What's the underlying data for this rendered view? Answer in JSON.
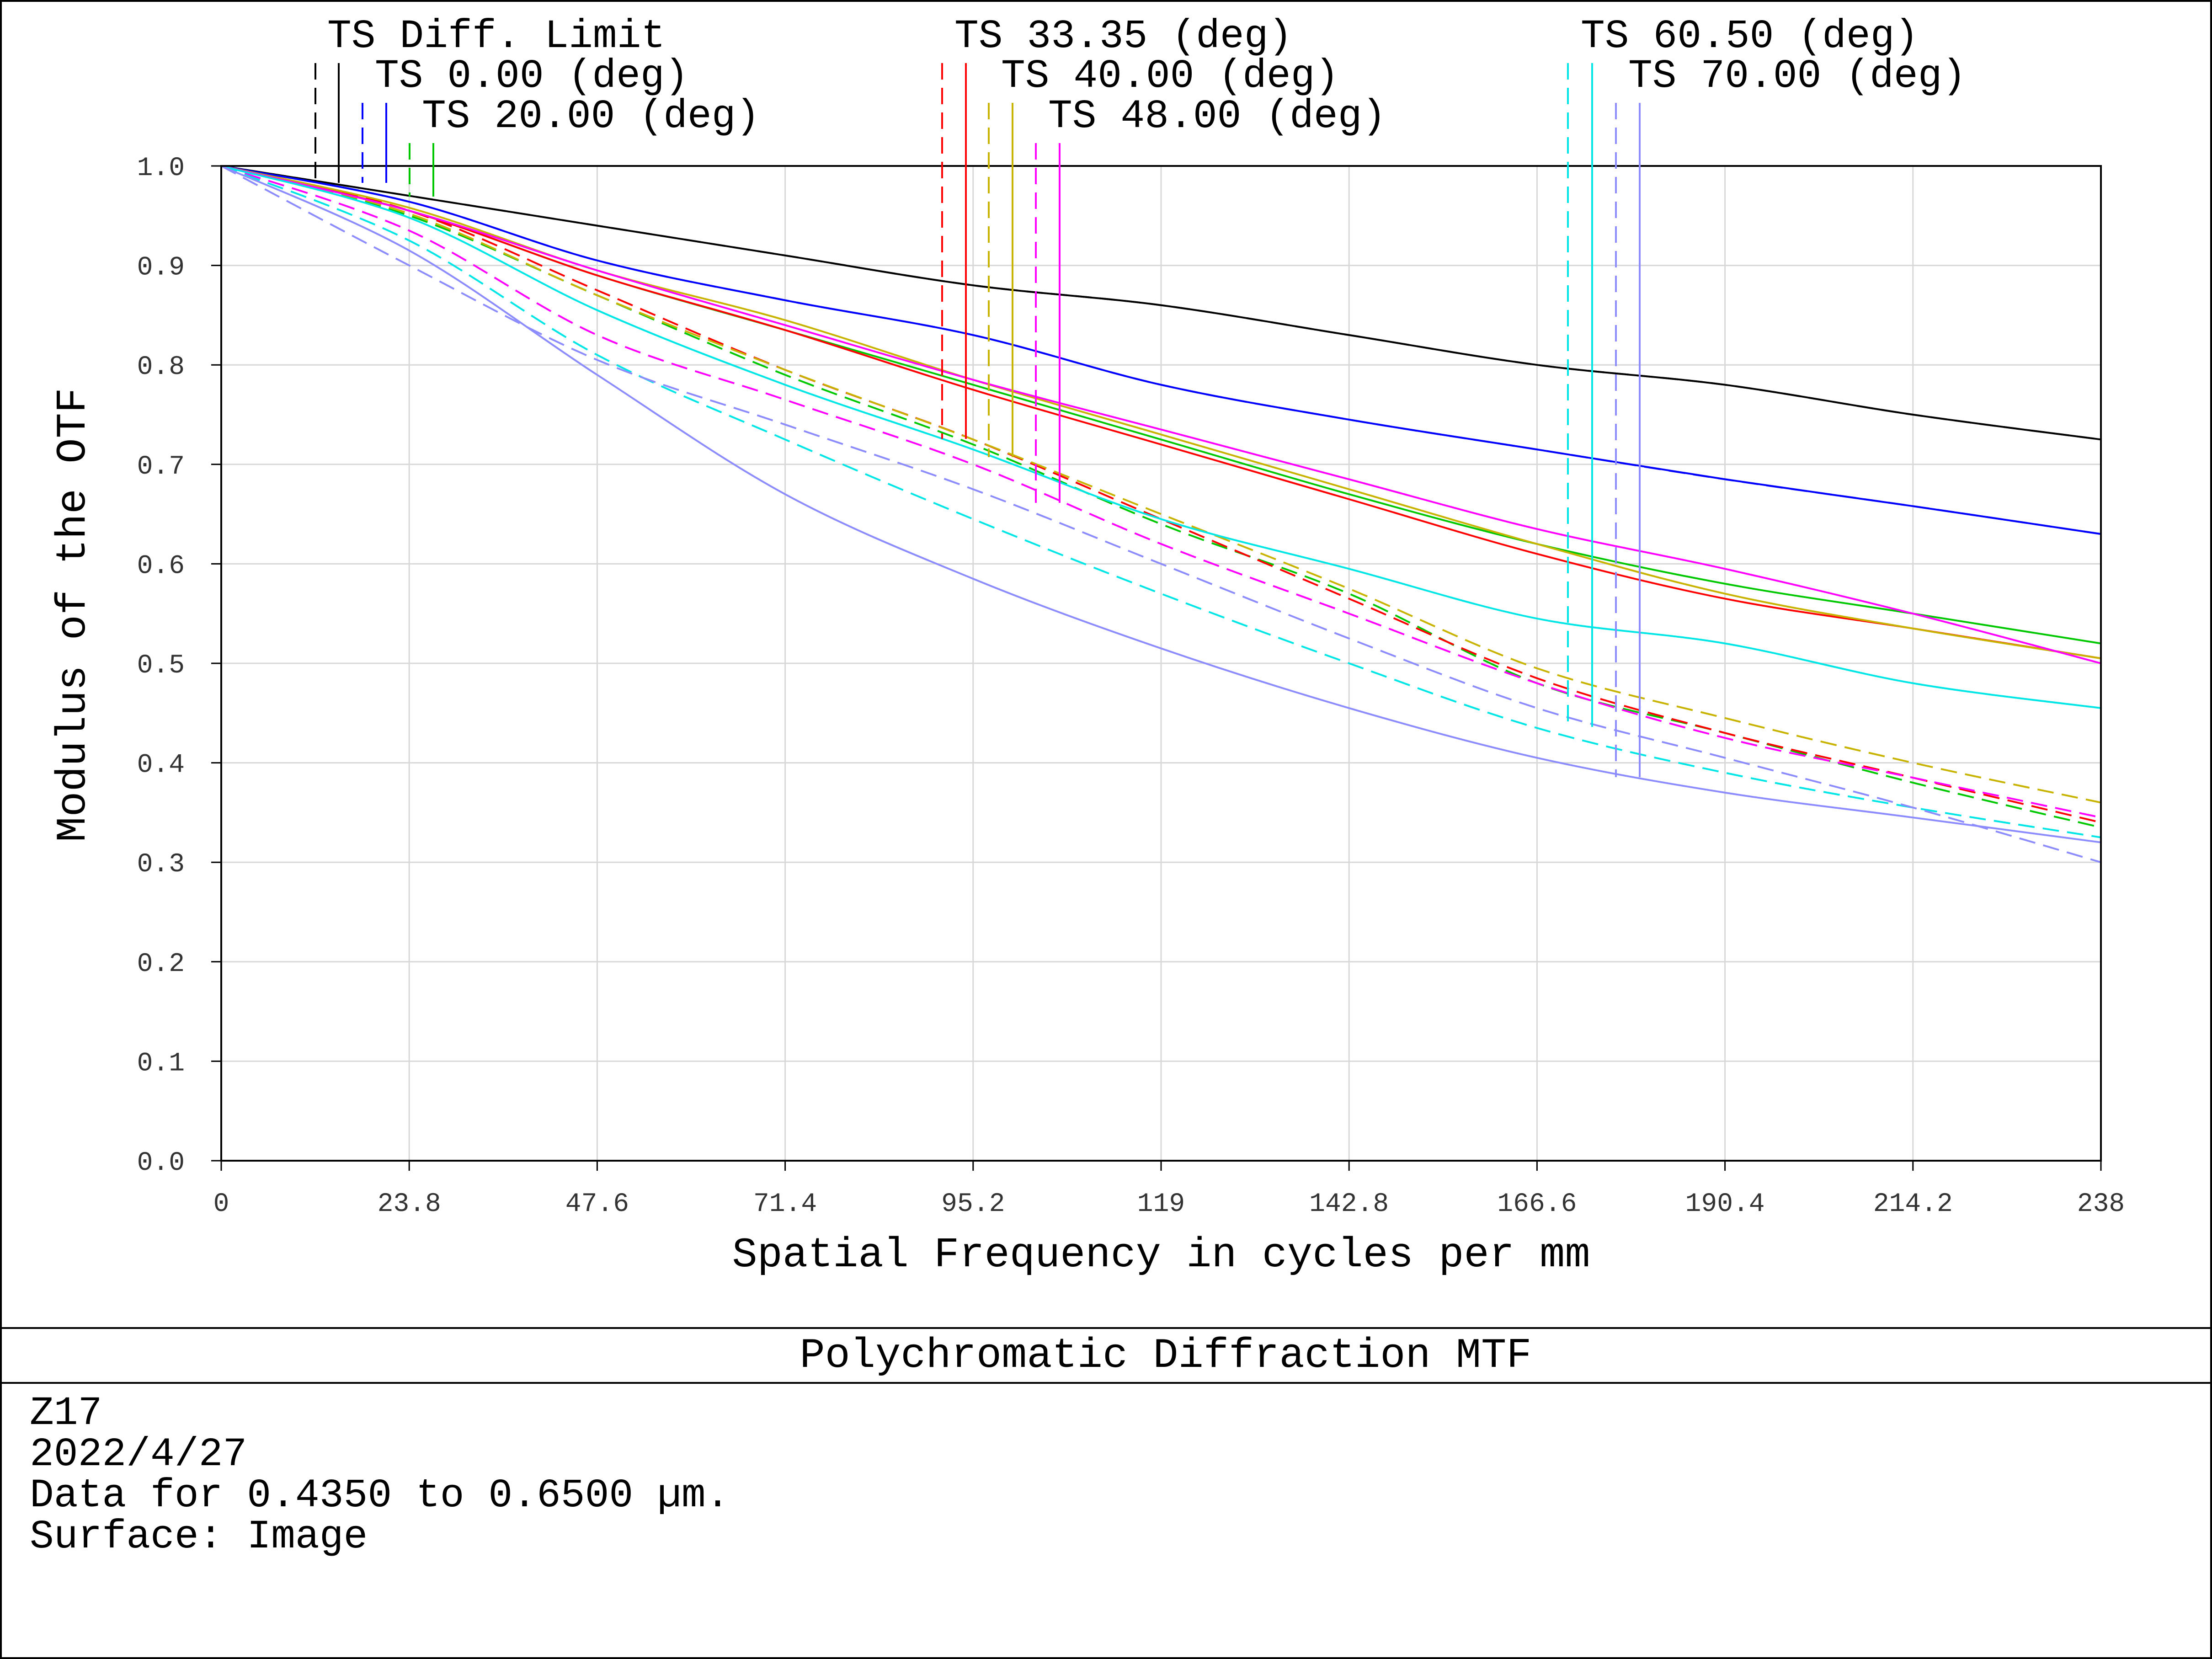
{
  "chart_data": {
    "type": "line",
    "title": "Polychromatic Diffraction MTF",
    "xlabel": "Spatial Frequency in cycles per mm",
    "ylabel": "Modulus of the OTF",
    "xlim": [
      0,
      238
    ],
    "ylim": [
      0,
      1
    ],
    "grid": true,
    "x_ticks": [
      "0",
      "23.8",
      "47.6",
      "71.4",
      "95.2",
      "119",
      "142.8",
      "166.6",
      "190.4",
      "214.2",
      "238"
    ],
    "y_ticks": [
      "0.0",
      "0.1",
      "0.2",
      "0.3",
      "0.4",
      "0.5",
      "0.6",
      "0.7",
      "0.8",
      "0.9",
      "1.0"
    ],
    "x": [
      0,
      23.8,
      47.6,
      71.4,
      95.2,
      119,
      142.8,
      166.6,
      190.4,
      214.2,
      238
    ],
    "legend": [
      {
        "label": "TS Diff. Limit",
        "color": "#000000"
      },
      {
        "label": "TS 0.00 (deg)",
        "color": "#0000ff"
      },
      {
        "label": "TS 20.00 (deg)",
        "color": "#00c800"
      },
      {
        "label": "TS 33.35 (deg)",
        "color": "#ff0000"
      },
      {
        "label": "TS 40.00 (deg)",
        "color": "#c8b400"
      },
      {
        "label": "TS 48.00 (deg)",
        "color": "#ff00ff"
      },
      {
        "label": "TS 60.50 (deg)",
        "color": "#00e6e6"
      },
      {
        "label": "TS 70.00 (deg)",
        "color": "#8c8cff"
      }
    ],
    "series": [
      {
        "field": "TS Diff. Limit",
        "type": "tangential",
        "color": "#000000",
        "values": [
          1.0,
          0.97,
          0.94,
          0.91,
          0.88,
          0.86,
          0.83,
          0.8,
          0.78,
          0.75,
          0.725
        ]
      },
      {
        "field": "TS Diff. Limit",
        "type": "sagittal",
        "color": "#000000",
        "values": [
          1.0,
          0.97,
          0.94,
          0.91,
          0.88,
          0.86,
          0.83,
          0.8,
          0.78,
          0.75,
          0.725
        ]
      },
      {
        "field": "TS 0.00 (deg)",
        "type": "tangential",
        "color": "#0000ff",
        "values": [
          1.0,
          0.964,
          0.905,
          0.865,
          0.83,
          0.78,
          0.745,
          0.715,
          0.685,
          0.658,
          0.63
        ]
      },
      {
        "field": "TS 0.00 (deg)",
        "type": "sagittal",
        "color": "#0000ff",
        "values": [
          1.0,
          0.964,
          0.905,
          0.865,
          0.83,
          0.78,
          0.745,
          0.715,
          0.685,
          0.658,
          0.63
        ]
      },
      {
        "field": "TS 20.00 (deg)",
        "type": "tangential",
        "color": "#00c800",
        "values": [
          1.0,
          0.955,
          0.89,
          0.835,
          0.78,
          0.725,
          0.67,
          0.62,
          0.58,
          0.55,
          0.52
        ]
      },
      {
        "field": "TS 20.00 (deg)",
        "type": "sagittal",
        "color": "#00c800",
        "values": [
          1.0,
          0.95,
          0.87,
          0.79,
          0.72,
          0.64,
          0.57,
          0.48,
          0.43,
          0.38,
          0.335
        ]
      },
      {
        "field": "TS 33.35 (deg)",
        "type": "tangential",
        "color": "#ff0000",
        "values": [
          1.0,
          0.955,
          0.89,
          0.835,
          0.775,
          0.72,
          0.665,
          0.61,
          0.565,
          0.535,
          0.505
        ]
      },
      {
        "field": "TS 33.35 (deg)",
        "type": "sagittal",
        "color": "#ff0000",
        "values": [
          1.0,
          0.955,
          0.875,
          0.795,
          0.725,
          0.645,
          0.565,
          0.485,
          0.43,
          0.385,
          0.34
        ]
      },
      {
        "field": "TS 40.00 (deg)",
        "type": "tangential",
        "color": "#c8b400",
        "values": [
          1.0,
          0.958,
          0.895,
          0.845,
          0.785,
          0.73,
          0.675,
          0.62,
          0.57,
          0.535,
          0.505
        ]
      },
      {
        "field": "TS 40.00 (deg)",
        "type": "sagittal",
        "color": "#c8b400",
        "values": [
          1.0,
          0.952,
          0.87,
          0.795,
          0.725,
          0.65,
          0.575,
          0.495,
          0.445,
          0.4,
          0.36
        ]
      },
      {
        "field": "TS 48.00 (deg)",
        "type": "tangential",
        "color": "#ff00ff",
        "values": [
          1.0,
          0.955,
          0.895,
          0.84,
          0.785,
          0.735,
          0.685,
          0.635,
          0.595,
          0.55,
          0.5
        ]
      },
      {
        "field": "TS 48.00 (deg)",
        "type": "sagittal",
        "color": "#ff00ff",
        "values": [
          1.0,
          0.935,
          0.83,
          0.765,
          0.7,
          0.62,
          0.55,
          0.48,
          0.425,
          0.385,
          0.345
        ]
      },
      {
        "field": "TS 60.50 (deg)",
        "type": "tangential",
        "color": "#00e6e6",
        "values": [
          1.0,
          0.948,
          0.855,
          0.78,
          0.715,
          0.645,
          0.595,
          0.545,
          0.52,
          0.48,
          0.455
        ]
      },
      {
        "field": "TS 60.50 (deg)",
        "type": "sagittal",
        "color": "#00e6e6",
        "values": [
          1.0,
          0.925,
          0.81,
          0.725,
          0.645,
          0.57,
          0.5,
          0.435,
          0.39,
          0.355,
          0.325
        ]
      },
      {
        "field": "TS 70.00 (deg)",
        "type": "tangential",
        "color": "#8c8cff",
        "values": [
          1.0,
          0.915,
          0.79,
          0.67,
          0.585,
          0.515,
          0.455,
          0.405,
          0.37,
          0.345,
          0.32
        ]
      },
      {
        "field": "TS 70.00 (deg)",
        "type": "sagittal",
        "color": "#8c8cff",
        "values": [
          1.0,
          0.9,
          0.805,
          0.74,
          0.675,
          0.6,
          0.525,
          0.455,
          0.405,
          0.355,
          0.3
        ]
      }
    ]
  },
  "info": {
    "lines": [
      "Z17",
      "2022/4/27",
      "Data for 0.4350 to 0.6500 µm.",
      "Surface: Image"
    ]
  }
}
